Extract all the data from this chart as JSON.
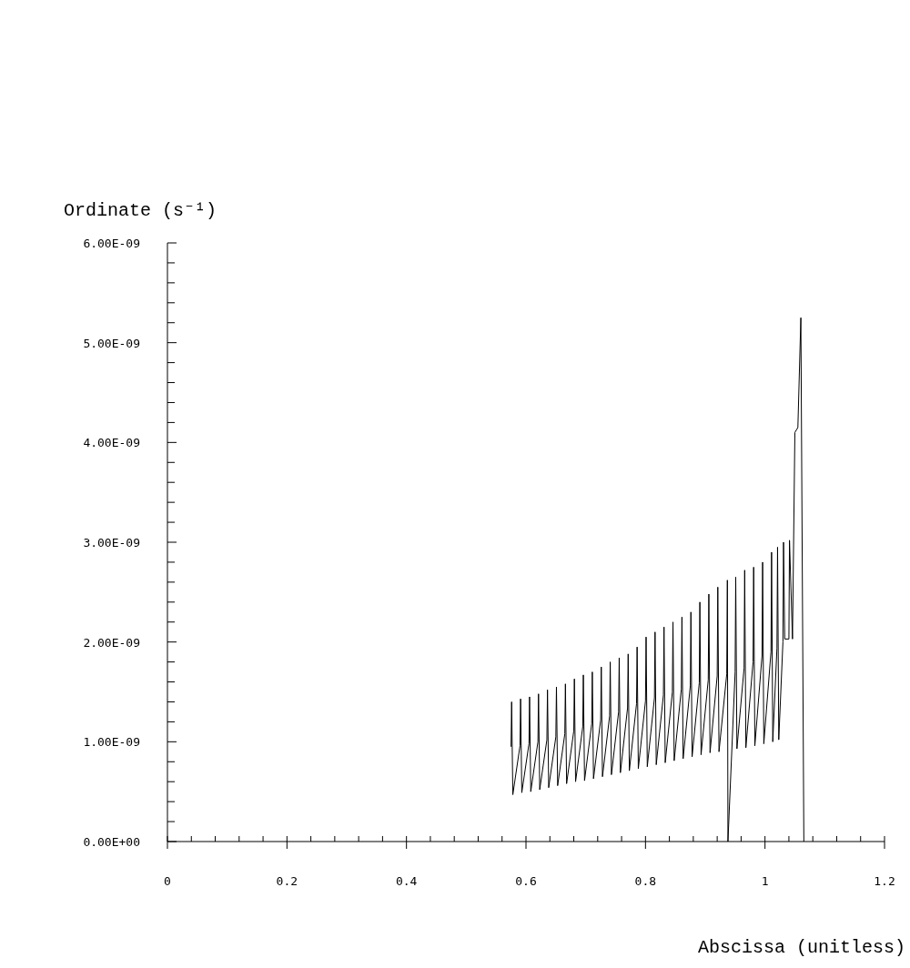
{
  "chart_data": {
    "type": "line",
    "xlabel": "Abscissa (unitless)",
    "ylabel": "Ordinate (s⁻¹)",
    "xlim": [
      0,
      1.2
    ],
    "xticks": [
      0,
      {
        "value": 0.04,
        "label": null
      },
      {
        "value": 0.08,
        "label": null
      },
      {
        "value": 0.12,
        "label": null
      },
      {
        "value": 0.16,
        "label": null
      },
      0.2,
      {
        "value": 0.24,
        "label": null
      },
      {
        "value": 0.28,
        "label": null
      },
      {
        "value": 0.32,
        "label": null
      },
      {
        "value": 0.36,
        "label": null
      },
      0.4,
      {
        "value": 0.44,
        "label": null
      },
      {
        "value": 0.48,
        "label": null
      },
      {
        "value": 0.52,
        "label": null
      },
      {
        "value": 0.56,
        "label": null
      },
      0.6,
      {
        "value": 0.64,
        "label": null
      },
      {
        "value": 0.68,
        "label": null
      },
      {
        "value": 0.72,
        "label": null
      },
      {
        "value": 0.76,
        "label": null
      },
      0.8,
      {
        "value": 0.84,
        "label": null
      },
      {
        "value": 0.88,
        "label": null
      },
      {
        "value": 0.92,
        "label": null
      },
      {
        "value": 0.96,
        "label": null
      },
      1,
      {
        "value": 1.04,
        "label": null
      },
      {
        "value": 1.08,
        "label": null
      },
      {
        "value": 1.12,
        "label": null
      },
      {
        "value": 1.16,
        "label": null
      },
      1.2
    ],
    "ylim": [
      0,
      6e-09
    ],
    "yticks": [
      {
        "value": 0,
        "label": "0.00E+00"
      },
      {
        "value": 2e-10,
        "label": null
      },
      {
        "value": 4e-10,
        "label": null
      },
      {
        "value": 6e-10,
        "label": null
      },
      {
        "value": 8e-10,
        "label": null
      },
      {
        "value": 1e-09,
        "label": "1.00E-09"
      },
      {
        "value": 1.2e-09,
        "label": null
      },
      {
        "value": 1.4e-09,
        "label": null
      },
      {
        "value": 1.6e-09,
        "label": null
      },
      {
        "value": 1.8e-09,
        "label": null
      },
      {
        "value": 2e-09,
        "label": "2.00E-09"
      },
      {
        "value": 2.2e-09,
        "label": null
      },
      {
        "value": 2.4e-09,
        "label": null
      },
      {
        "value": 2.6e-09,
        "label": null
      },
      {
        "value": 2.8e-09,
        "label": null
      },
      {
        "value": 3e-09,
        "label": "3.00E-09"
      },
      {
        "value": 3.2e-09,
        "label": null
      },
      {
        "value": 3.4e-09,
        "label": null
      },
      {
        "value": 3.6e-09,
        "label": null
      },
      {
        "value": 3.8e-09,
        "label": null
      },
      {
        "value": 4e-09,
        "label": "4.00E-09"
      },
      {
        "value": 4.2e-09,
        "label": null
      },
      {
        "value": 4.4e-09,
        "label": null
      },
      {
        "value": 4.6e-09,
        "label": null
      },
      {
        "value": 4.8e-09,
        "label": null
      },
      {
        "value": 5e-09,
        "label": "5.00E-09"
      },
      {
        "value": 5.2e-09,
        "label": null
      },
      {
        "value": 5.4e-09,
        "label": null
      },
      {
        "value": 5.6e-09,
        "label": null
      },
      {
        "value": 5.8e-09,
        "label": null
      },
      {
        "value": 6e-09,
        "label": "6.00E-09"
      }
    ],
    "series": [
      {
        "color": "#000000",
        "x": [
          0.575,
          0.576,
          0.578,
          0.59,
          0.591,
          0.593,
          0.605,
          0.606,
          0.608,
          0.62,
          0.621,
          0.623,
          0.635,
          0.636,
          0.638,
          0.65,
          0.651,
          0.653,
          0.665,
          0.666,
          0.668,
          0.68,
          0.681,
          0.683,
          0.695,
          0.696,
          0.698,
          0.71,
          0.711,
          0.713,
          0.725,
          0.726,
          0.728,
          0.74,
          0.741,
          0.743,
          0.755,
          0.756,
          0.758,
          0.77,
          0.771,
          0.773,
          0.785,
          0.786,
          0.788,
          0.8,
          0.801,
          0.803,
          0.815,
          0.816,
          0.818,
          0.83,
          0.831,
          0.833,
          0.845,
          0.846,
          0.848,
          0.86,
          0.861,
          0.863,
          0.875,
          0.876,
          0.878,
          0.89,
          0.891,
          0.893,
          0.905,
          0.906,
          0.908,
          0.92,
          0.921,
          0.923,
          0.936,
          0.937,
          0.938,
          0.95,
          0.951,
          0.953,
          0.965,
          0.966,
          0.968,
          0.98,
          0.981,
          0.983,
          0.995,
          0.996,
          0.998,
          1.01,
          1.011,
          1.013,
          1.02,
          1.021,
          1.023,
          1.03,
          1.031,
          1.033,
          1.04,
          1.041,
          1.046,
          1.05,
          1.055,
          1.06,
          1.065
        ],
        "values": [
          9.5e-10,
          1.4e-09,
          4.7e-10,
          9.6e-10,
          1.43e-09,
          4.9e-10,
          9.8e-10,
          1.45e-09,
          5e-10,
          1e-09,
          1.48e-09,
          5.2e-10,
          1.02e-09,
          1.52e-09,
          5.4e-10,
          1.05e-09,
          1.55e-09,
          5.6e-10,
          1.08e-09,
          1.58e-09,
          5.8e-10,
          1.11e-09,
          1.63e-09,
          6e-10,
          1.15e-09,
          1.67e-09,
          6.1e-10,
          1.18e-09,
          1.7e-09,
          6.3e-10,
          1.22e-09,
          1.75e-09,
          6.5e-10,
          1.26e-09,
          1.8e-09,
          6.7e-10,
          1.3e-09,
          1.84e-09,
          6.9e-10,
          1.34e-09,
          1.88e-09,
          7.1e-10,
          1.38e-09,
          1.95e-09,
          7.3e-10,
          1.41e-09,
          2.05e-09,
          7.5e-10,
          1.44e-09,
          2.1e-09,
          7.7e-10,
          1.47e-09,
          2.15e-09,
          7.9e-10,
          1.5e-09,
          2.2e-09,
          8.1e-10,
          1.53e-09,
          2.25e-09,
          8.3e-10,
          1.56e-09,
          2.3e-09,
          8.5e-10,
          1.59e-09,
          2.4e-09,
          8.7e-10,
          1.62e-09,
          2.48e-09,
          8.9e-10,
          1.66e-09,
          2.55e-09,
          9e-10,
          1.68e-09,
          2.62e-09,
          0,
          1.7e-09,
          2.65e-09,
          9.3e-10,
          1.74e-09,
          2.72e-09,
          9.4e-10,
          1.8e-09,
          2.75e-09,
          9.6e-10,
          1.86e-09,
          2.8e-09,
          9.8e-10,
          1.9e-09,
          2.9e-09,
          1e-09,
          1.94e-09,
          2.95e-09,
          1.02e-09,
          2e-09,
          3e-09,
          2.03e-09,
          2.03e-09,
          3.02e-09,
          2.03e-09,
          4.1e-09,
          4.15e-09,
          5.25e-09,
          0
        ]
      }
    ]
  }
}
